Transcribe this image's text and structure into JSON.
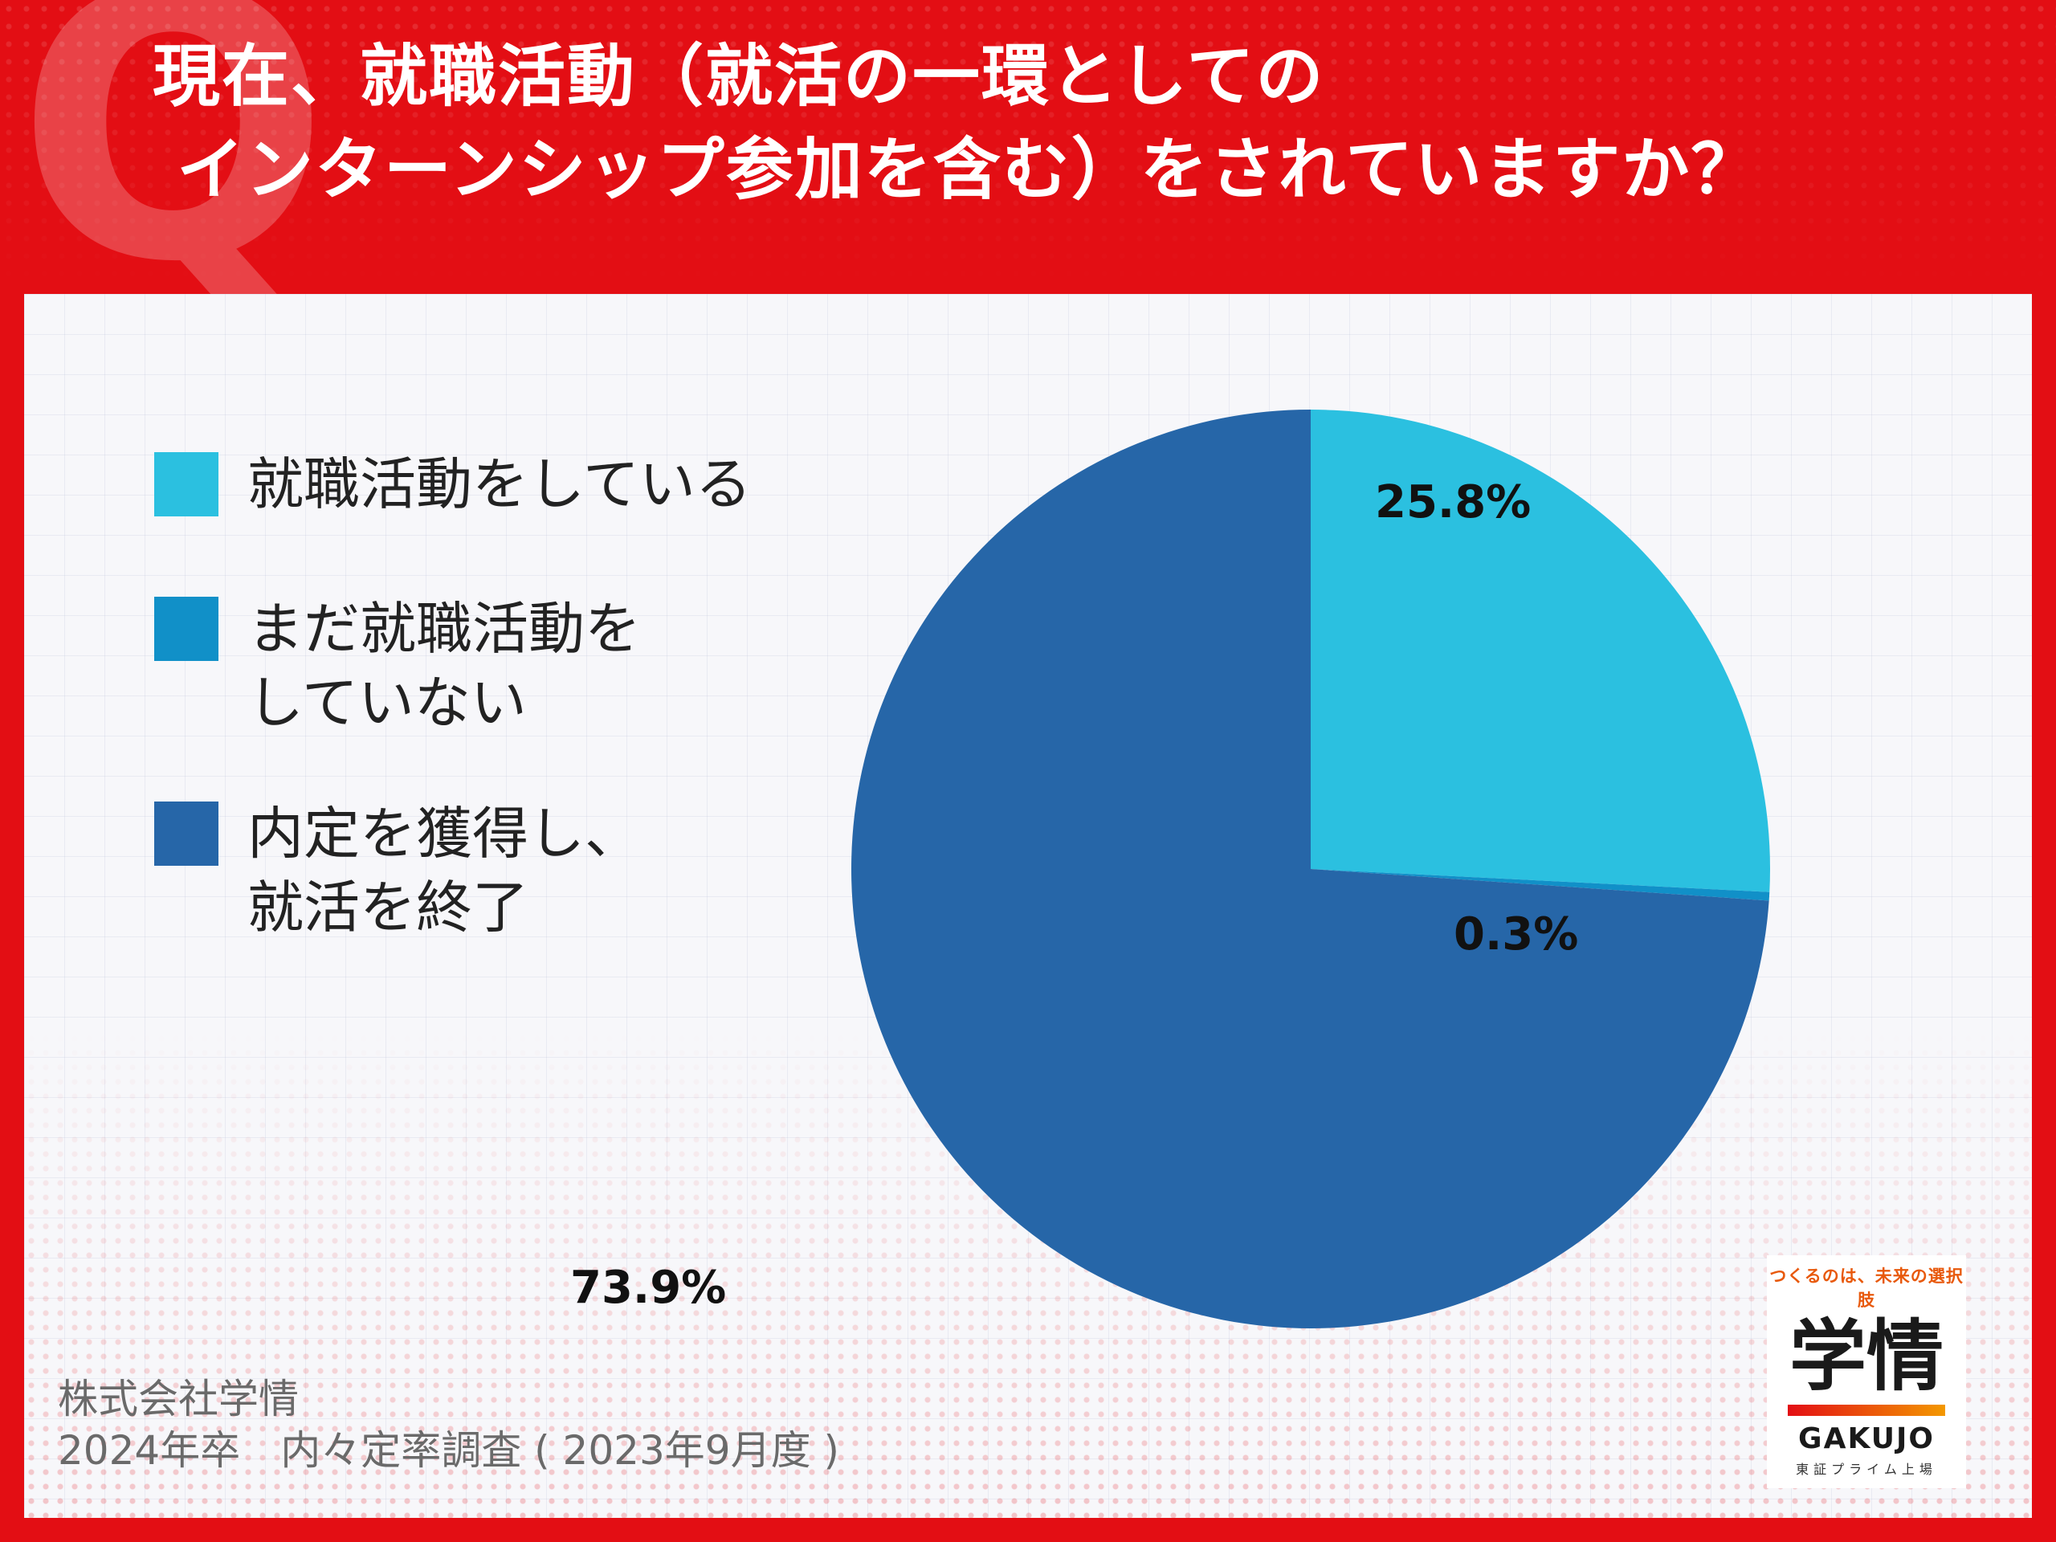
{
  "question": {
    "line1": "現在、就職活動（就活の一環としての",
    "line2": "インターンシップ参加を含む）をされていますか？"
  },
  "chart_data": {
    "type": "pie",
    "categories": [
      "就職活動をしている",
      "まだ就職活動をしていない",
      "内定を獲得し、就活を終了"
    ],
    "legend_labels": [
      "就職活動をしている",
      "まだ就職活動を\nしていない",
      "内定を獲得し、\n就活を終了"
    ],
    "values": [
      25.8,
      0.3,
      73.9
    ],
    "labels": [
      "25.8%",
      "0.3%",
      "73.9%"
    ],
    "colors": [
      "#2bc0e0",
      "#1190c8",
      "#2666a8"
    ],
    "start_angle_deg": 0,
    "direction": "clockwise",
    "legend_position": "left"
  },
  "source": {
    "company": "株式会社学情",
    "survey": "2024年卒　内々定率調査 ( 2023年9月度 )"
  },
  "logo": {
    "tagline": "つくるのは、未来の選択肢",
    "name": "学情",
    "name_en": "GAKUJO",
    "listing": "東証プライム上場",
    "colors": [
      "#e30e14",
      "#f39800"
    ]
  }
}
